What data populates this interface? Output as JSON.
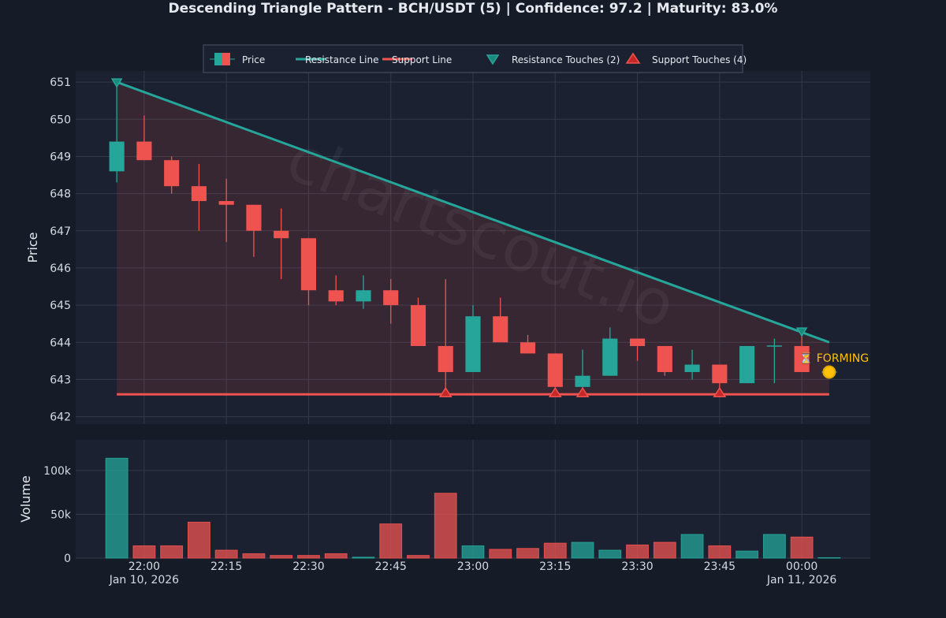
{
  "chart_data": {
    "type": "candlestick",
    "title": "Descending Triangle Pattern - BCH/USDT (5) | Confidence: 97.2 | Maturity: 83.0%",
    "ylabel_price": "Price",
    "ylabel_volume": "Volume",
    "watermark": "chartscout.io",
    "legend": {
      "placement": "top-center",
      "items": [
        {
          "label": "Price",
          "kind": "candle"
        },
        {
          "label": "Resistance Line",
          "kind": "line",
          "color": "#26a69a"
        },
        {
          "label": "Support Line",
          "kind": "line",
          "color": "#ef5350"
        },
        {
          "label": "Resistance Touches (2)",
          "kind": "marker-down",
          "color": "#26a69a"
        },
        {
          "label": "Support Touches (4)",
          "kind": "marker-up",
          "color": "#ef5350"
        }
      ]
    },
    "price_axis": {
      "ylim": [
        641.8,
        651.3
      ],
      "ticks": [
        642,
        643,
        644,
        645,
        646,
        647,
        648,
        649,
        650,
        651
      ]
    },
    "volume_axis": {
      "ylim": [
        0,
        135000
      ],
      "ticks": [
        0,
        50000,
        100000
      ],
      "tick_labels": [
        "0",
        "50k",
        "100k"
      ]
    },
    "x_axis": {
      "start": "21:55",
      "interval_minutes": 5,
      "domain_minutes": [
        -7.5,
        137.5
      ],
      "ticks": [
        {
          "time": "22:00",
          "label": "22:00",
          "sublabel": "Jan 10, 2026"
        },
        {
          "time": "22:15",
          "label": "22:15",
          "sublabel": ""
        },
        {
          "time": "22:30",
          "label": "22:30",
          "sublabel": ""
        },
        {
          "time": "22:45",
          "label": "22:45",
          "sublabel": ""
        },
        {
          "time": "23:00",
          "label": "23:00",
          "sublabel": ""
        },
        {
          "time": "23:15",
          "label": "23:15",
          "sublabel": ""
        },
        {
          "time": "23:30",
          "label": "23:30",
          "sublabel": ""
        },
        {
          "time": "23:45",
          "label": "23:45",
          "sublabel": ""
        },
        {
          "time": "00:00",
          "label": "00:00",
          "sublabel": "Jan 11, 2026"
        }
      ]
    },
    "colors": {
      "up": "#26a69a",
      "down": "#ef5350",
      "forming": "#ffc107",
      "background": "#151b27",
      "plot_bg": "#1b2130",
      "grid": "#323a4b"
    },
    "candles": [
      {
        "time": "21:55",
        "open": 648.6,
        "high": 651.0,
        "low": 648.3,
        "close": 649.4,
        "volume": 114000
      },
      {
        "time": "22:00",
        "open": 649.4,
        "high": 650.1,
        "low": 648.9,
        "close": 648.9,
        "volume": 14000
      },
      {
        "time": "22:05",
        "open": 648.9,
        "high": 649.0,
        "low": 648.0,
        "close": 648.2,
        "volume": 14000
      },
      {
        "time": "22:10",
        "open": 648.2,
        "high": 648.8,
        "low": 647.0,
        "close": 647.8,
        "volume": 41000
      },
      {
        "time": "22:15",
        "open": 647.8,
        "high": 648.4,
        "low": 646.7,
        "close": 647.7,
        "volume": 9000
      },
      {
        "time": "22:20",
        "open": 647.7,
        "high": 647.7,
        "low": 646.3,
        "close": 647.0,
        "volume": 5000
      },
      {
        "time": "22:25",
        "open": 647.0,
        "high": 647.6,
        "low": 645.7,
        "close": 646.8,
        "volume": 3000
      },
      {
        "time": "22:30",
        "open": 646.8,
        "high": 646.8,
        "low": 645.0,
        "close": 645.4,
        "volume": 3000
      },
      {
        "time": "22:35",
        "open": 645.4,
        "high": 645.8,
        "low": 645.0,
        "close": 645.1,
        "volume": 5000
      },
      {
        "time": "22:40",
        "open": 645.1,
        "high": 645.8,
        "low": 644.9,
        "close": 645.4,
        "volume": 1000
      },
      {
        "time": "22:45",
        "open": 645.4,
        "high": 645.7,
        "low": 644.5,
        "close": 645.0,
        "volume": 39000
      },
      {
        "time": "22:50",
        "open": 645.0,
        "high": 645.2,
        "low": 643.9,
        "close": 643.9,
        "volume": 3000
      },
      {
        "time": "22:55",
        "open": 643.9,
        "high": 645.7,
        "low": 642.6,
        "close": 643.2,
        "volume": 74000
      },
      {
        "time": "23:00",
        "open": 643.2,
        "high": 645.0,
        "low": 643.2,
        "close": 644.7,
        "volume": 14000
      },
      {
        "time": "23:05",
        "open": 644.7,
        "high": 645.2,
        "low": 644.0,
        "close": 644.0,
        "volume": 10000
      },
      {
        "time": "23:10",
        "open": 644.0,
        "high": 644.2,
        "low": 643.7,
        "close": 643.7,
        "volume": 11000
      },
      {
        "time": "23:15",
        "open": 643.7,
        "high": 643.7,
        "low": 642.7,
        "close": 642.8,
        "volume": 17000
      },
      {
        "time": "23:20",
        "open": 642.8,
        "high": 643.8,
        "low": 642.7,
        "close": 643.1,
        "volume": 18000
      },
      {
        "time": "23:25",
        "open": 643.1,
        "high": 644.4,
        "low": 643.1,
        "close": 644.1,
        "volume": 9000
      },
      {
        "time": "23:30",
        "open": 644.1,
        "high": 644.1,
        "low": 643.5,
        "close": 643.9,
        "volume": 15000
      },
      {
        "time": "23:35",
        "open": 643.9,
        "high": 643.9,
        "low": 643.1,
        "close": 643.2,
        "volume": 18000
      },
      {
        "time": "23:40",
        "open": 643.2,
        "high": 643.8,
        "low": 643.0,
        "close": 643.4,
        "volume": 27000
      },
      {
        "time": "23:45",
        "open": 643.4,
        "high": 643.4,
        "low": 642.7,
        "close": 642.9,
        "volume": 14000
      },
      {
        "time": "23:50",
        "open": 642.9,
        "high": 643.9,
        "low": 642.9,
        "close": 643.9,
        "volume": 8000
      },
      {
        "time": "23:55",
        "open": 643.9,
        "high": 644.1,
        "low": 642.9,
        "close": 643.9,
        "volume": 27000
      },
      {
        "time": "00:00",
        "open": 643.9,
        "high": 644.2,
        "low": 643.2,
        "close": 643.2,
        "volume": 24000
      },
      {
        "time": "00:05",
        "open": 643.2,
        "high": 643.2,
        "low": 643.2,
        "close": 643.2,
        "volume": 500
      }
    ],
    "resistance_line": {
      "from": {
        "time": "21:55",
        "price": 651.0
      },
      "to": {
        "time": "00:05",
        "price": 644.0
      }
    },
    "support_line": {
      "from": {
        "time": "21:55",
        "price": 642.6
      },
      "to": {
        "time": "00:05",
        "price": 642.6
      }
    },
    "resistance_touches": [
      {
        "time": "21:55",
        "price": 651.0
      },
      {
        "time": "00:00",
        "price": 644.3
      }
    ],
    "support_touches": [
      {
        "time": "22:55",
        "price": 642.6
      },
      {
        "time": "23:15",
        "price": 642.6
      },
      {
        "time": "23:20",
        "price": 642.6
      },
      {
        "time": "23:45",
        "price": 642.6
      }
    ],
    "forming_marker": {
      "time": "00:05",
      "price": 643.2,
      "label": "⏳ FORMING"
    }
  }
}
